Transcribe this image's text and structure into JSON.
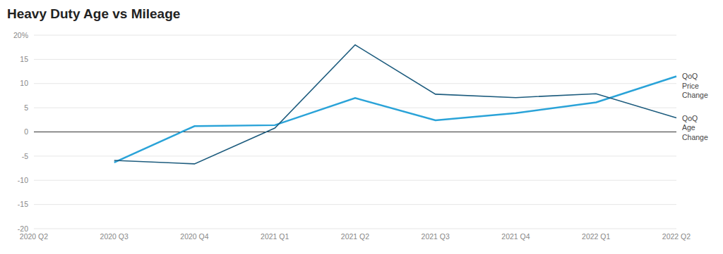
{
  "chart_data": {
    "type": "line",
    "title": "Heavy Duty Age vs Mileage",
    "categories": [
      "2020 Q2",
      "2020 Q3",
      "2020 Q4",
      "2021 Q1",
      "2021 Q2",
      "2021 Q3",
      "2021 Q4",
      "2022 Q1",
      "2022 Q2"
    ],
    "series": [
      {
        "name": "QoQ Price Change",
        "color": "#2aa3d8",
        "values": [
          null,
          -6.3,
          1.2,
          1.4,
          7.0,
          2.4,
          3.9,
          6.1,
          11.5
        ]
      },
      {
        "name": "QoQ Age Change",
        "color": "#1d5c7e",
        "values": [
          null,
          -5.9,
          -6.6,
          0.8,
          18.0,
          7.8,
          7.1,
          7.9,
          2.9
        ]
      }
    ],
    "ylim": [
      -20,
      20
    ],
    "yticks": [
      -20,
      -15,
      -10,
      -5,
      0,
      5,
      10,
      15,
      {
        "value": 20,
        "label": "20%"
      }
    ],
    "grid": true
  }
}
